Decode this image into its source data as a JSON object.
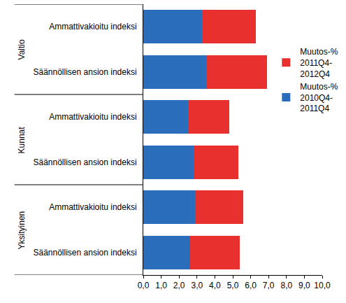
{
  "chart_data": {
    "type": "bar",
    "orientation": "horizontal",
    "stacked": true,
    "grid": false,
    "legend": "right",
    "categories": [
      "Ammattivakioitu indeksi",
      "Säännöllisen ansion indeksi",
      "Ammattivakioitu indeksi",
      "Säännöllisen ansion indeksi",
      "Ammattivakioitu indeksi",
      "Säännöllisen ansion indeksi"
    ],
    "groups": [
      "Valtio",
      "Valtio",
      "Kunnat",
      "Kunnat",
      "Yksityinen",
      "Yksityinen"
    ],
    "series": [
      {
        "name": "Muutos-% 2010Q4-2011Q4",
        "color": "#2a6ebb",
        "values": [
          3.3,
          3.5,
          2.5,
          2.8,
          2.9,
          2.6
        ]
      },
      {
        "name": "Muutos-% 2011Q4-2012Q4",
        "color": "#e8312f",
        "values": [
          3.0,
          3.4,
          2.3,
          2.5,
          2.7,
          2.8
        ]
      }
    ],
    "xlim": [
      0,
      10
    ],
    "xticks": [
      {
        "value": 0,
        "label": "0,0"
      },
      {
        "value": 1,
        "label": "1,0"
      },
      {
        "value": 2,
        "label": "2,0"
      },
      {
        "value": 3,
        "label": "3,0"
      },
      {
        "value": 4,
        "label": "4,0"
      },
      {
        "value": 5,
        "label": "5,0"
      },
      {
        "value": 6,
        "label": "6,0"
      },
      {
        "value": 7,
        "label": "7,0"
      },
      {
        "value": 8,
        "label": "8,0"
      },
      {
        "value": 9,
        "label": "9,0"
      },
      {
        "value": 10,
        "label": "10,0"
      }
    ]
  }
}
